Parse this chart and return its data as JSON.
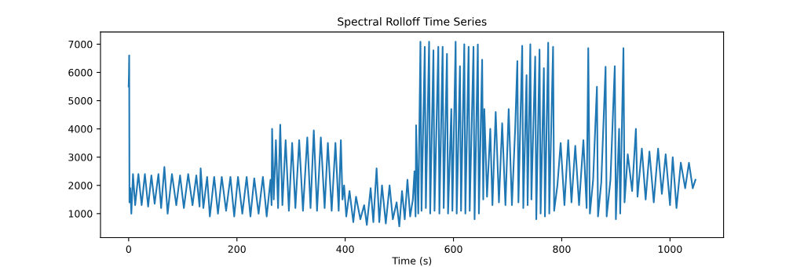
{
  "chart_data": {
    "type": "line",
    "title": "Spectral Rolloff Time Series",
    "xlabel": "Time (s)",
    "xlim": [
      -52,
      1099
    ],
    "ylim": [
      150,
      7430
    ],
    "xticks": [
      0,
      200,
      400,
      600,
      800,
      1000
    ],
    "yticks": [
      1000,
      2000,
      3000,
      4000,
      5000,
      6000,
      7000
    ],
    "marker": "none",
    "line_style": "solid",
    "series": [
      {
        "color": "#1f77b4",
        "x": [
          0,
          0.5,
          1,
          1.5,
          3,
          5,
          8,
          12,
          18,
          24,
          30,
          36,
          42,
          48,
          55,
          60,
          66,
          72,
          80,
          88,
          95,
          102,
          110,
          118,
          125,
          131,
          133,
          138,
          145,
          150,
          158,
          165,
          172,
          180,
          188,
          195,
          202,
          210,
          218,
          225,
          232,
          240,
          248,
          255,
          262,
          264,
          265,
          268,
          272,
          276,
          280,
          284,
          290,
          296,
          302,
          308,
          315,
          322,
          330,
          336,
          342,
          348,
          355,
          362,
          368,
          375,
          382,
          388,
          392,
          395,
          398,
          402,
          408,
          415,
          420,
          428,
          435,
          440,
          447,
          452,
          458,
          463,
          468,
          475,
          482,
          488,
          495,
          500,
          505,
          510,
          515,
          520,
          525,
          528,
          530,
          531,
          535,
          539,
          541,
          547,
          549,
          555,
          557,
          563,
          565,
          572,
          574,
          580,
          582,
          588,
          590,
          596,
          598,
          604,
          606,
          612,
          614,
          620,
          622,
          628,
          630,
          637,
          639,
          645,
          647,
          653,
          655,
          657,
          662,
          668,
          672,
          678,
          684,
          690,
          696,
          702,
          708,
          714,
          718,
          720,
          727,
          729,
          735,
          737,
          742,
          744,
          751,
          753,
          759,
          761,
          767,
          769,
          775,
          777,
          784,
          786,
          792,
          798,
          805,
          812,
          818,
          825,
          832,
          840,
          846,
          849,
          852,
          858,
          865,
          867,
          873,
          881,
          883,
          890,
          898,
          900,
          906,
          908,
          914,
          916,
          922,
          930,
          937,
          940,
          948,
          955,
          962,
          970,
          978,
          985,
          992,
          1000,
          1005,
          1012,
          1020,
          1028,
          1035,
          1042,
          1047
        ],
        "values": [
          5500,
          5900,
          6600,
          1400,
          1900,
          1000,
          2400,
          1300,
          2400,
          1300,
          2400,
          1250,
          2350,
          1350,
          2400,
          1200,
          2650,
          1000,
          2400,
          1300,
          2350,
          1200,
          2400,
          1300,
          2350,
          1250,
          2600,
          1200,
          2300,
          900,
          2300,
          1000,
          2300,
          1100,
          2300,
          900,
          2300,
          1000,
          2300,
          900,
          2250,
          1000,
          2300,
          900,
          2200,
          1300,
          4000,
          1500,
          3600,
          1200,
          4150,
          1300,
          3600,
          1100,
          3500,
          1200,
          3600,
          1100,
          3700,
          1200,
          3950,
          1100,
          3700,
          1200,
          3500,
          1100,
          3500,
          1100,
          3600,
          1500,
          2000,
          900,
          1800,
          700,
          1600,
          800,
          1300,
          600,
          1900,
          700,
          2600,
          700,
          2000,
          650,
          2000,
          800,
          1400,
          550,
          1800,
          800,
          2200,
          900,
          1500,
          2500,
          900,
          4130,
          1000,
          7090,
          1100,
          6910,
          1200,
          7090,
          1000,
          6780,
          1100,
          6910,
          1000,
          6910,
          1200,
          6660,
          1000,
          4700,
          1100,
          7090,
          1000,
          6220,
          1100,
          7000,
          1000,
          6910,
          1100,
          6910,
          800,
          6990,
          1000,
          6450,
          1500,
          4700,
          1600,
          4000,
          1300,
          4600,
          1400,
          4200,
          1300,
          4700,
          1300,
          4000,
          6400,
          1400,
          6940,
          1200,
          5900,
          1300,
          7000,
          1500,
          6560,
          800,
          6810,
          1000,
          6150,
          900,
          7050,
          1000,
          6910,
          1100,
          2000,
          3500,
          1300,
          3600,
          1400,
          3400,
          1300,
          3600,
          1200,
          6860,
          1000,
          2200,
          5490,
          900,
          2100,
          6200,
          900,
          2200,
          6220,
          800,
          4000,
          1000,
          6860,
          1400,
          3100,
          1800,
          4000,
          1600,
          3300,
          1500,
          3200,
          1400,
          3300,
          1700,
          3100,
          1300,
          3000,
          1200,
          2800,
          1900,
          2800,
          1900,
          2200
        ]
      }
    ]
  }
}
